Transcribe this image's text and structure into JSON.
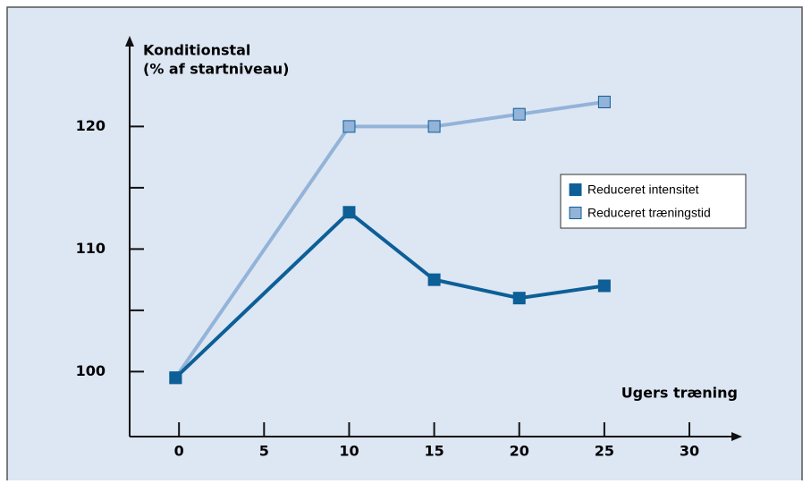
{
  "chart_data": {
    "type": "line",
    "y_label": [
      "Konditionstal",
      "(% af startniveau)"
    ],
    "x_label": "Ugers træning",
    "series": [
      {
        "name": "Reduceret intensitet",
        "color": "#0c5f97",
        "marker_fill": "#0c5f97",
        "x": [
          -0.2,
          10,
          15,
          20,
          25
        ],
        "values": [
          99.5,
          113,
          107.5,
          106,
          107
        ]
      },
      {
        "name": "Reduceret træningstid",
        "color": "#93b3d8",
        "marker_fill": "#93b3d8",
        "x": [
          -0.2,
          10,
          15,
          20,
          25
        ],
        "values": [
          99.5,
          120,
          120,
          121,
          122
        ]
      }
    ],
    "xlim": [
      -2.9,
      33.1
    ],
    "xticks": [
      0,
      5,
      10,
      15,
      20,
      25,
      30
    ],
    "ylim": [
      94.7,
      127.4
    ],
    "yticks": [
      100,
      110,
      120
    ],
    "yminor": [
      105,
      115
    ]
  }
}
